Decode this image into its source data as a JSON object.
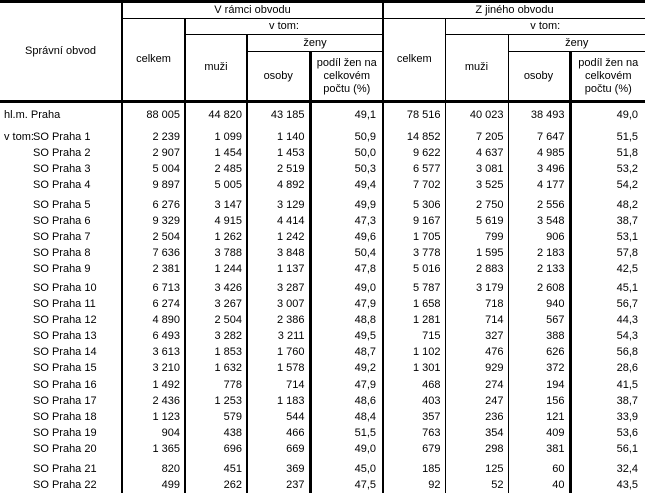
{
  "table": {
    "corner_header": "Správní obvod",
    "groups": [
      {
        "title": "V rámci obvodu"
      },
      {
        "title": "Z jiného obvodu"
      }
    ],
    "labels": {
      "celkem": "celkem",
      "v_tom": "v tom:",
      "muzi": "muži",
      "zeny": "ženy",
      "osoby": "osoby",
      "podil": "podíl žen na celkovém počtu (%)"
    },
    "row_prefix": "v tom:",
    "rows": [
      {
        "prefix": "",
        "indent": false,
        "label": "hl.m. Praha",
        "values": [
          "88 005",
          "44 820",
          "43 185",
          "49,1",
          "78 516",
          "40 023",
          "38 493",
          "49,0"
        ]
      },
      {
        "prefix": "v tom:",
        "indent": true,
        "label": "SO Praha 1",
        "values": [
          "2 239",
          "1 099",
          "1 140",
          "50,9",
          "14 852",
          "7 205",
          "7 647",
          "51,5"
        ]
      },
      {
        "prefix": "",
        "indent": true,
        "label": "SO Praha 2",
        "values": [
          "2 907",
          "1 454",
          "1 453",
          "50,0",
          "9 622",
          "4 637",
          "4 985",
          "51,8"
        ]
      },
      {
        "prefix": "",
        "indent": true,
        "label": "SO Praha 3",
        "values": [
          "5 004",
          "2 485",
          "2 519",
          "50,3",
          "6 577",
          "3 081",
          "3 496",
          "53,2"
        ]
      },
      {
        "prefix": "",
        "indent": true,
        "label": "SO Praha 4",
        "values": [
          "9 897",
          "5 005",
          "4 892",
          "49,4",
          "7 702",
          "3 525",
          "4 177",
          "54,2"
        ]
      },
      {
        "prefix": "",
        "indent": true,
        "label": "SO Praha 5",
        "values": [
          "6 276",
          "3 147",
          "3 129",
          "49,9",
          "5 306",
          "2 750",
          "2 556",
          "48,2"
        ]
      },
      {
        "prefix": "",
        "indent": true,
        "label": "SO Praha 6",
        "values": [
          "9 329",
          "4 915",
          "4 414",
          "47,3",
          "9 167",
          "5 619",
          "3 548",
          "38,7"
        ]
      },
      {
        "prefix": "",
        "indent": true,
        "label": "SO Praha 7",
        "values": [
          "2 504",
          "1 262",
          "1 242",
          "49,6",
          "1 705",
          "799",
          "906",
          "53,1"
        ]
      },
      {
        "prefix": "",
        "indent": true,
        "label": "SO Praha 8",
        "values": [
          "7 636",
          "3 788",
          "3 848",
          "50,4",
          "3 778",
          "1 595",
          "2 183",
          "57,8"
        ]
      },
      {
        "prefix": "",
        "indent": true,
        "label": "SO Praha 9",
        "values": [
          "2 381",
          "1 244",
          "1 137",
          "47,8",
          "5 016",
          "2 883",
          "2 133",
          "42,5"
        ]
      },
      {
        "prefix": "",
        "indent": true,
        "label": "SO Praha 10",
        "values": [
          "6 713",
          "3 426",
          "3 287",
          "49,0",
          "5 787",
          "3 179",
          "2 608",
          "45,1"
        ]
      },
      {
        "prefix": "",
        "indent": true,
        "label": "SO Praha 11",
        "values": [
          "6 274",
          "3 267",
          "3 007",
          "47,9",
          "1 658",
          "718",
          "940",
          "56,7"
        ]
      },
      {
        "prefix": "",
        "indent": true,
        "label": "SO Praha 12",
        "values": [
          "4 890",
          "2 504",
          "2 386",
          "48,8",
          "1 281",
          "714",
          "567",
          "44,3"
        ]
      },
      {
        "prefix": "",
        "indent": true,
        "label": "SO Praha 13",
        "values": [
          "6 493",
          "3 282",
          "3 211",
          "49,5",
          "715",
          "327",
          "388",
          "54,3"
        ]
      },
      {
        "prefix": "",
        "indent": true,
        "label": "SO Praha 14",
        "values": [
          "3 613",
          "1 853",
          "1 760",
          "48,7",
          "1 102",
          "476",
          "626",
          "56,8"
        ]
      },
      {
        "prefix": "",
        "indent": true,
        "label": "SO Praha 15",
        "values": [
          "3 210",
          "1 632",
          "1 578",
          "49,2",
          "1 301",
          "929",
          "372",
          "28,6"
        ]
      },
      {
        "prefix": "",
        "indent": true,
        "label": "SO Praha 16",
        "values": [
          "1 492",
          "778",
          "714",
          "47,9",
          "468",
          "274",
          "194",
          "41,5"
        ]
      },
      {
        "prefix": "",
        "indent": true,
        "label": "SO Praha 17",
        "values": [
          "2 436",
          "1 253",
          "1 183",
          "48,6",
          "403",
          "247",
          "156",
          "38,7"
        ]
      },
      {
        "prefix": "",
        "indent": true,
        "label": "SO Praha 18",
        "values": [
          "1 123",
          "579",
          "544",
          "48,4",
          "357",
          "236",
          "121",
          "33,9"
        ]
      },
      {
        "prefix": "",
        "indent": true,
        "label": "SO Praha 19",
        "values": [
          "904",
          "438",
          "466",
          "51,5",
          "763",
          "354",
          "409",
          "53,6"
        ]
      },
      {
        "prefix": "",
        "indent": true,
        "label": "SO Praha 20",
        "values": [
          "1 365",
          "696",
          "669",
          "49,0",
          "679",
          "298",
          "381",
          "56,1"
        ]
      },
      {
        "prefix": "",
        "indent": true,
        "label": "SO Praha 21",
        "values": [
          "820",
          "451",
          "369",
          "45,0",
          "185",
          "125",
          "60",
          "32,4"
        ]
      },
      {
        "prefix": "",
        "indent": true,
        "label": "SO Praha 22",
        "values": [
          "499",
          "262",
          "237",
          "47,5",
          "92",
          "52",
          "40",
          "43,5"
        ]
      }
    ]
  }
}
